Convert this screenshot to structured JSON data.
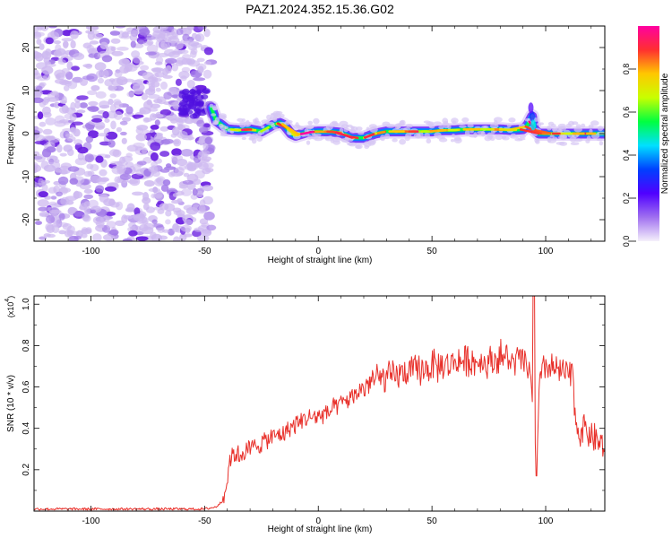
{
  "title": "PAZ1.2024.352.15.36.G02",
  "chart_data": [
    {
      "type": "heatmap",
      "xlabel": "Height of straight line (km)",
      "ylabel": "Frequency (Hz)",
      "xlim": [
        -125,
        126
      ],
      "ylim": [
        -25,
        25
      ],
      "x_ticks": [
        -100,
        -50,
        0,
        50,
        100
      ],
      "x_tick_labels": [
        "-100",
        "-50",
        "0",
        "50",
        "100"
      ],
      "y_ticks": [
        -20,
        -10,
        0,
        10,
        20
      ],
      "y_tick_labels": [
        "-20",
        "-10",
        "0",
        "10",
        "20"
      ],
      "noise_region_x": [
        -125,
        -47
      ],
      "signal_ridge": {
        "x": [
          -47,
          -45,
          -40,
          -35,
          -30,
          -25,
          -20,
          -17,
          -15,
          -12,
          -10,
          -5,
          0,
          5,
          10,
          15,
          20,
          25,
          30,
          35,
          40,
          45,
          50,
          55,
          60,
          65,
          70,
          75,
          80,
          85,
          90,
          92,
          94,
          95,
          97,
          100,
          105,
          110,
          115,
          120,
          126
        ],
        "frequency_hz": [
          6,
          3,
          1,
          0.8,
          1,
          0.5,
          2,
          2.5,
          2,
          0,
          -0.5,
          0.3,
          0.5,
          0.5,
          0.2,
          -1,
          -1,
          0,
          0.5,
          0.5,
          0.5,
          0.5,
          0.5,
          0.8,
          0.8,
          1,
          1,
          1,
          1,
          0.8,
          1,
          2,
          4,
          1,
          0,
          0,
          0,
          0,
          0,
          0,
          0
        ]
      },
      "colorbar": {
        "label": "Normalized spectral amplitude",
        "range": [
          0,
          1
        ],
        "ticks": [
          0.0,
          0.2,
          0.4,
          0.6,
          0.8
        ],
        "tick_labels": [
          "0.0",
          "0.2",
          "0.4",
          "0.6",
          "0.8"
        ],
        "colors": [
          "#f5f0fb",
          "#a070f0",
          "#5000ff",
          "#0040ff",
          "#00e0ff",
          "#00ff40",
          "#c8ff00",
          "#ffc800",
          "#ff3030",
          "#ff00a0"
        ]
      }
    },
    {
      "type": "line",
      "xlabel": "Height of straight line (km)",
      "ylabel": "SNR (10 * v/v)",
      "y_multiplier_label": "(x10",
      "y_multiplier_exp": "4",
      "xlim": [
        -125,
        126
      ],
      "ylim": [
        0,
        1.04
      ],
      "x_ticks": [
        -100,
        -50,
        0,
        50,
        100
      ],
      "x_tick_labels": [
        "-100",
        "-50",
        "0",
        "50",
        "100"
      ],
      "y_ticks": [
        0.2,
        0.4,
        0.6,
        0.8,
        1.0
      ],
      "y_tick_labels": [
        "0.2",
        "0.4",
        "0.6",
        "0.8",
        "1.0"
      ],
      "series": [
        {
          "color": "#e8302a",
          "x": [
            -125,
            -110,
            -100,
            -90,
            -80,
            -70,
            -60,
            -50,
            -45,
            -42,
            -40,
            -39,
            -37,
            -35,
            -30,
            -25,
            -20,
            -15,
            -10,
            -5,
            0,
            5,
            10,
            15,
            20,
            25,
            30,
            35,
            40,
            45,
            50,
            55,
            60,
            65,
            70,
            75,
            80,
            85,
            90,
            92,
            94,
            95,
            96,
            97,
            98,
            100,
            105,
            110,
            112,
            113,
            115,
            118,
            120,
            123,
            126
          ],
          "values": [
            0.01,
            0.01,
            0.01,
            0.01,
            0.01,
            0.01,
            0.01,
            0.01,
            0.02,
            0.05,
            0.15,
            0.25,
            0.28,
            0.27,
            0.3,
            0.33,
            0.36,
            0.38,
            0.42,
            0.45,
            0.46,
            0.48,
            0.52,
            0.55,
            0.6,
            0.64,
            0.64,
            0.66,
            0.67,
            0.68,
            0.7,
            0.7,
            0.72,
            0.73,
            0.72,
            0.72,
            0.75,
            0.72,
            0.73,
            0.7,
            0.6,
            0.35,
            0.2,
            0.55,
            0.65,
            0.7,
            0.68,
            0.66,
            0.65,
            0.45,
            0.38,
            0.4,
            0.36,
            0.34,
            0.3
          ]
        }
      ]
    }
  ]
}
